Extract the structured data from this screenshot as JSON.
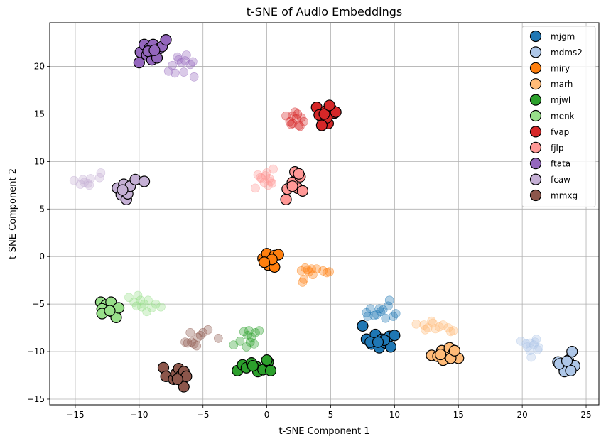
{
  "chart_data": {
    "type": "scatter",
    "title": "t-SNE of Audio Embeddings",
    "xlabel": "t-SNE Component 1",
    "ylabel": "t-SNE Component 2",
    "xlim": [
      -17.0,
      26.0
    ],
    "ylim": [
      -15.6,
      24.6
    ],
    "xticks": [
      -15,
      -10,
      -5,
      0,
      5,
      10,
      15,
      20,
      25
    ],
    "yticks": [
      -15,
      -10,
      -5,
      0,
      5,
      10,
      15,
      20
    ],
    "xtick_labels": [
      "−15",
      "−10",
      "−5",
      "0",
      "5",
      "10",
      "15",
      "20",
      "25"
    ],
    "ytick_labels": [
      "−15",
      "−10",
      "−5",
      "0",
      "5",
      "10",
      "15",
      "20"
    ],
    "grid": true,
    "legend_position": "top-right",
    "series": [
      {
        "name": "mjgm",
        "color": "#1f77b4",
        "strong": [
          [
            7.5,
            -7.3
          ],
          [
            7.8,
            -8.7
          ],
          [
            8.2,
            -9.2
          ],
          [
            8.5,
            -8.2
          ],
          [
            8.8,
            -9.6
          ],
          [
            9.0,
            -8.7
          ],
          [
            9.3,
            -9.1
          ],
          [
            9.6,
            -8.4
          ],
          [
            8.1,
            -9.0
          ],
          [
            9.7,
            -9.5
          ],
          [
            10.0,
            -8.3
          ],
          [
            9.2,
            -8.8
          ],
          [
            8.7,
            -9.0
          ]
        ],
        "faint": [
          [
            7.8,
            -5.9
          ],
          [
            8.1,
            -5.5
          ],
          [
            8.6,
            -6.1
          ],
          [
            9.1,
            -5.6
          ],
          [
            9.6,
            -4.6
          ],
          [
            9.9,
            -6.3
          ],
          [
            10.1,
            -6.0
          ],
          [
            8.9,
            -5.8
          ],
          [
            9.3,
            -6.5
          ],
          [
            8.4,
            -6.2
          ],
          [
            9.5,
            -5.2
          ],
          [
            8.8,
            -5.5
          ],
          [
            7.9,
            -6.3
          ]
        ]
      },
      {
        "name": "mdms2",
        "color": "#aec7e8",
        "strong": [
          [
            22.8,
            -11.1
          ],
          [
            23.2,
            -11.6
          ],
          [
            23.6,
            -10.9
          ],
          [
            23.9,
            -10.0
          ],
          [
            24.1,
            -11.5
          ],
          [
            23.3,
            -12.1
          ],
          [
            23.8,
            -12.0
          ],
          [
            22.9,
            -11.3
          ],
          [
            23.5,
            -11.0
          ]
        ],
        "faint": [
          [
            19.9,
            -8.9
          ],
          [
            20.3,
            -9.2
          ],
          [
            20.6,
            -9.9
          ],
          [
            20.9,
            -9.3
          ],
          [
            21.1,
            -8.7
          ],
          [
            21.3,
            -9.6
          ],
          [
            20.7,
            -10.6
          ],
          [
            20.4,
            -9.5
          ],
          [
            21.0,
            -9.0
          ],
          [
            20.6,
            -9.1
          ],
          [
            21.2,
            -9.8
          ]
        ]
      },
      {
        "name": "miry",
        "color": "#ff7f0e",
        "strong": [
          [
            -0.3,
            -0.2
          ],
          [
            0.0,
            0.3
          ],
          [
            0.3,
            -0.7
          ],
          [
            0.6,
            0.1
          ],
          [
            0.9,
            0.2
          ],
          [
            0.1,
            -0.9
          ],
          [
            0.6,
            -1.1
          ],
          [
            0.4,
            -0.3
          ],
          [
            -0.2,
            -0.6
          ]
        ],
        "faint": [
          [
            2.7,
            -1.5
          ],
          [
            3.0,
            -1.2
          ],
          [
            3.3,
            -1.6
          ],
          [
            3.6,
            -1.9
          ],
          [
            2.9,
            -2.4
          ],
          [
            2.8,
            -2.7
          ],
          [
            3.9,
            -1.3
          ],
          [
            4.4,
            -1.5
          ],
          [
            4.9,
            -1.6
          ],
          [
            3.2,
            -1.4
          ],
          [
            4.7,
            -1.7
          ],
          [
            3.5,
            -1.3
          ]
        ]
      },
      {
        "name": "marh",
        "color": "#ffbb78",
        "strong": [
          [
            12.9,
            -10.4
          ],
          [
            13.4,
            -10.5
          ],
          [
            13.7,
            -9.9
          ],
          [
            14.0,
            -10.5
          ],
          [
            14.3,
            -9.6
          ],
          [
            14.6,
            -10.2
          ],
          [
            15.0,
            -10.7
          ],
          [
            13.8,
            -10.9
          ],
          [
            14.4,
            -10.7
          ],
          [
            14.7,
            -9.9
          ],
          [
            13.6,
            -10.3
          ]
        ],
        "faint": [
          [
            11.7,
            -7.1
          ],
          [
            12.3,
            -7.2
          ],
          [
            12.6,
            -7.5
          ],
          [
            12.9,
            -6.8
          ],
          [
            13.2,
            -7.6
          ],
          [
            13.5,
            -7.4
          ],
          [
            13.8,
            -7.2
          ],
          [
            14.2,
            -7.5
          ],
          [
            14.4,
            -7.9
          ],
          [
            14.6,
            -7.8
          ],
          [
            12.4,
            -7.7
          ],
          [
            13.0,
            -7.0
          ]
        ]
      },
      {
        "name": "mjwl",
        "color": "#2ca02c",
        "strong": [
          [
            -2.3,
            -12.0
          ],
          [
            -1.9,
            -11.4
          ],
          [
            -1.6,
            -11.7
          ],
          [
            -1.2,
            -11.2
          ],
          [
            -0.8,
            -11.6
          ],
          [
            -0.7,
            -12.1
          ],
          [
            -0.3,
            -11.9
          ],
          [
            0.1,
            -11.1
          ],
          [
            0.3,
            -12.0
          ],
          [
            0.0,
            -10.9
          ],
          [
            -1.1,
            -11.5
          ]
        ],
        "faint": [
          [
            -2.6,
            -9.3
          ],
          [
            -2.1,
            -8.9
          ],
          [
            -1.8,
            -7.9
          ],
          [
            -1.5,
            -8.3
          ],
          [
            -1.2,
            -8.5
          ],
          [
            -1.0,
            -9.2
          ],
          [
            -0.6,
            -7.8
          ],
          [
            -1.3,
            -9.0
          ],
          [
            -1.6,
            -9.5
          ],
          [
            -0.9,
            -8.0
          ],
          [
            -1.4,
            -7.8
          ]
        ]
      },
      {
        "name": "menk",
        "color": "#98df8a",
        "strong": [
          [
            -13.0,
            -4.8
          ],
          [
            -12.6,
            -5.1
          ],
          [
            -12.3,
            -5.4
          ],
          [
            -12.0,
            -5.9
          ],
          [
            -12.2,
            -4.8
          ],
          [
            -11.8,
            -6.4
          ],
          [
            -11.6,
            -5.4
          ],
          [
            -12.9,
            -5.5
          ],
          [
            -12.9,
            -6.0
          ],
          [
            -12.3,
            -5.7
          ]
        ],
        "faint": [
          [
            -10.8,
            -4.3
          ],
          [
            -10.4,
            -4.8
          ],
          [
            -10.1,
            -4.1
          ],
          [
            -9.8,
            -5.3
          ],
          [
            -9.6,
            -5.0
          ],
          [
            -9.3,
            -4.6
          ],
          [
            -9.0,
            -5.4
          ],
          [
            -8.7,
            -5.0
          ],
          [
            -8.3,
            -5.3
          ],
          [
            -9.4,
            -5.8
          ],
          [
            -10.2,
            -5.2
          ],
          [
            -9.9,
            -4.6
          ]
        ]
      },
      {
        "name": "fvap",
        "color": "#d62728",
        "strong": [
          [
            3.9,
            15.7
          ],
          [
            4.2,
            14.8
          ],
          [
            4.4,
            14.2
          ],
          [
            4.6,
            15.3
          ],
          [
            4.8,
            14.0
          ],
          [
            5.0,
            15.6
          ],
          [
            5.3,
            15.1
          ],
          [
            4.1,
            14.9
          ],
          [
            4.7,
            14.6
          ],
          [
            5.4,
            15.2
          ],
          [
            4.5,
            15.0
          ],
          [
            4.9,
            15.9
          ],
          [
            4.3,
            13.8
          ]
        ],
        "faint": [
          [
            1.5,
            14.8
          ],
          [
            1.8,
            14.2
          ],
          [
            2.0,
            14.0
          ],
          [
            2.2,
            15.2
          ],
          [
            2.5,
            13.8
          ],
          [
            2.7,
            14.6
          ],
          [
            2.9,
            14.2
          ],
          [
            2.3,
            14.5
          ],
          [
            2.0,
            14.8
          ],
          [
            2.6,
            13.7
          ],
          [
            1.9,
            13.9
          ],
          [
            2.4,
            15.0
          ]
        ]
      },
      {
        "name": "fjlp",
        "color": "#ff9896",
        "strong": [
          [
            1.5,
            6.0
          ],
          [
            1.6,
            7.1
          ],
          [
            2.0,
            7.8
          ],
          [
            2.2,
            8.9
          ],
          [
            2.4,
            7.2
          ],
          [
            2.6,
            8.4
          ],
          [
            2.8,
            6.9
          ],
          [
            2.5,
            8.7
          ],
          [
            2.0,
            7.4
          ]
        ],
        "faint": [
          [
            -0.9,
            7.2
          ],
          [
            -0.7,
            8.6
          ],
          [
            -0.4,
            8.2
          ],
          [
            -0.1,
            8.5
          ],
          [
            0.1,
            7.5
          ],
          [
            0.3,
            7.9
          ],
          [
            0.5,
            9.2
          ],
          [
            0.2,
            8.2
          ],
          [
            -0.2,
            7.8
          ],
          [
            0.4,
            7.7
          ],
          [
            -0.5,
            8.3
          ],
          [
            0.0,
            8.8
          ]
        ]
      },
      {
        "name": "ftata",
        "color": "#9467bd",
        "strong": [
          [
            -10.0,
            20.4
          ],
          [
            -9.9,
            21.5
          ],
          [
            -9.6,
            22.3
          ],
          [
            -9.4,
            21.2
          ],
          [
            -9.2,
            21.9
          ],
          [
            -9.0,
            20.7
          ],
          [
            -8.9,
            22.3
          ],
          [
            -8.7,
            21.4
          ],
          [
            -8.4,
            21.9
          ],
          [
            -8.2,
            22.1
          ],
          [
            -7.9,
            22.8
          ],
          [
            -8.6,
            20.9
          ],
          [
            -9.3,
            21.6
          ],
          [
            -8.8,
            21.7
          ]
        ],
        "faint": [
          [
            -7.7,
            19.5
          ],
          [
            -7.4,
            20.1
          ],
          [
            -7.2,
            19.3
          ],
          [
            -7.0,
            21.0
          ],
          [
            -6.7,
            20.4
          ],
          [
            -6.5,
            19.4
          ],
          [
            -6.3,
            21.2
          ],
          [
            -6.0,
            20.2
          ],
          [
            -5.8,
            20.5
          ],
          [
            -5.7,
            18.9
          ],
          [
            -6.9,
            20.7
          ],
          [
            -6.4,
            20.6
          ]
        ]
      },
      {
        "name": "fcaw",
        "color": "#c5b0d5",
        "strong": [
          [
            -11.7,
            7.2
          ],
          [
            -11.4,
            6.5
          ],
          [
            -11.2,
            7.6
          ],
          [
            -11.0,
            6.0
          ],
          [
            -10.9,
            6.6
          ],
          [
            -10.7,
            7.4
          ],
          [
            -10.3,
            8.1
          ],
          [
            -9.6,
            7.9
          ],
          [
            -11.3,
            7.0
          ]
        ],
        "faint": [
          [
            -15.1,
            8.0
          ],
          [
            -14.6,
            7.6
          ],
          [
            -14.3,
            7.8
          ],
          [
            -14.0,
            7.7
          ],
          [
            -13.8,
            8.2
          ],
          [
            -13.9,
            7.5
          ],
          [
            -13.1,
            8.3
          ],
          [
            -13.0,
            8.8
          ],
          [
            -14.4,
            8.1
          ]
        ]
      },
      {
        "name": "mmxg",
        "color": "#8c564b",
        "strong": [
          [
            -8.1,
            -11.7
          ],
          [
            -7.9,
            -12.6
          ],
          [
            -7.3,
            -12.9
          ],
          [
            -7.1,
            -12.3
          ],
          [
            -6.9,
            -11.8
          ],
          [
            -6.7,
            -12.5
          ],
          [
            -6.5,
            -12.1
          ],
          [
            -6.3,
            -12.6
          ],
          [
            -6.5,
            -13.7
          ],
          [
            -7.0,
            -12.9
          ]
        ],
        "faint": [
          [
            -6.4,
            -9.0
          ],
          [
            -6.0,
            -8.0
          ],
          [
            -5.7,
            -9.2
          ],
          [
            -5.4,
            -8.5
          ],
          [
            -5.0,
            -8.0
          ],
          [
            -4.6,
            -7.7
          ],
          [
            -5.9,
            -9.0
          ],
          [
            -3.8,
            -8.6
          ],
          [
            -5.5,
            -9.4
          ],
          [
            -6.2,
            -9.1
          ],
          [
            -5.2,
            -8.3
          ]
        ]
      }
    ]
  }
}
